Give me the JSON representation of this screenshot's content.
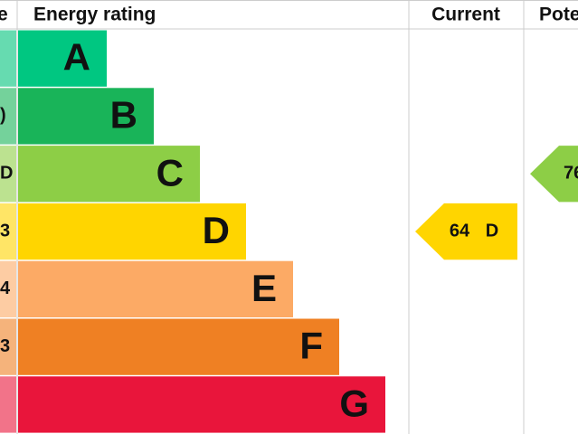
{
  "header": {
    "score": "e",
    "rating": "Energy rating",
    "current": "Current",
    "potential": "Pote"
  },
  "bands": [
    {
      "letter": "A",
      "color": "#00c781",
      "tint": "#66dbb0"
    },
    {
      "letter": "B",
      "color": "#19b459",
      "tint": "#74d29b",
      "score": ")"
    },
    {
      "letter": "C",
      "color": "#8dce46",
      "tint": "#bce290",
      "score": "D"
    },
    {
      "letter": "D",
      "color": "#ffd500",
      "tint": "#ffe566",
      "score": "3"
    },
    {
      "letter": "E",
      "color": "#fcaa65",
      "tint": "#fdcca3",
      "score": "4"
    },
    {
      "letter": "F",
      "color": "#ef8023",
      "tint": "#f5b37b",
      "score": "3"
    },
    {
      "letter": "G",
      "color": "#e9153b",
      "tint": "#f27389"
    }
  ],
  "current": {
    "value": 64,
    "letter": "D",
    "band": 3
  },
  "potential": {
    "value": 76,
    "band": 2
  }
}
